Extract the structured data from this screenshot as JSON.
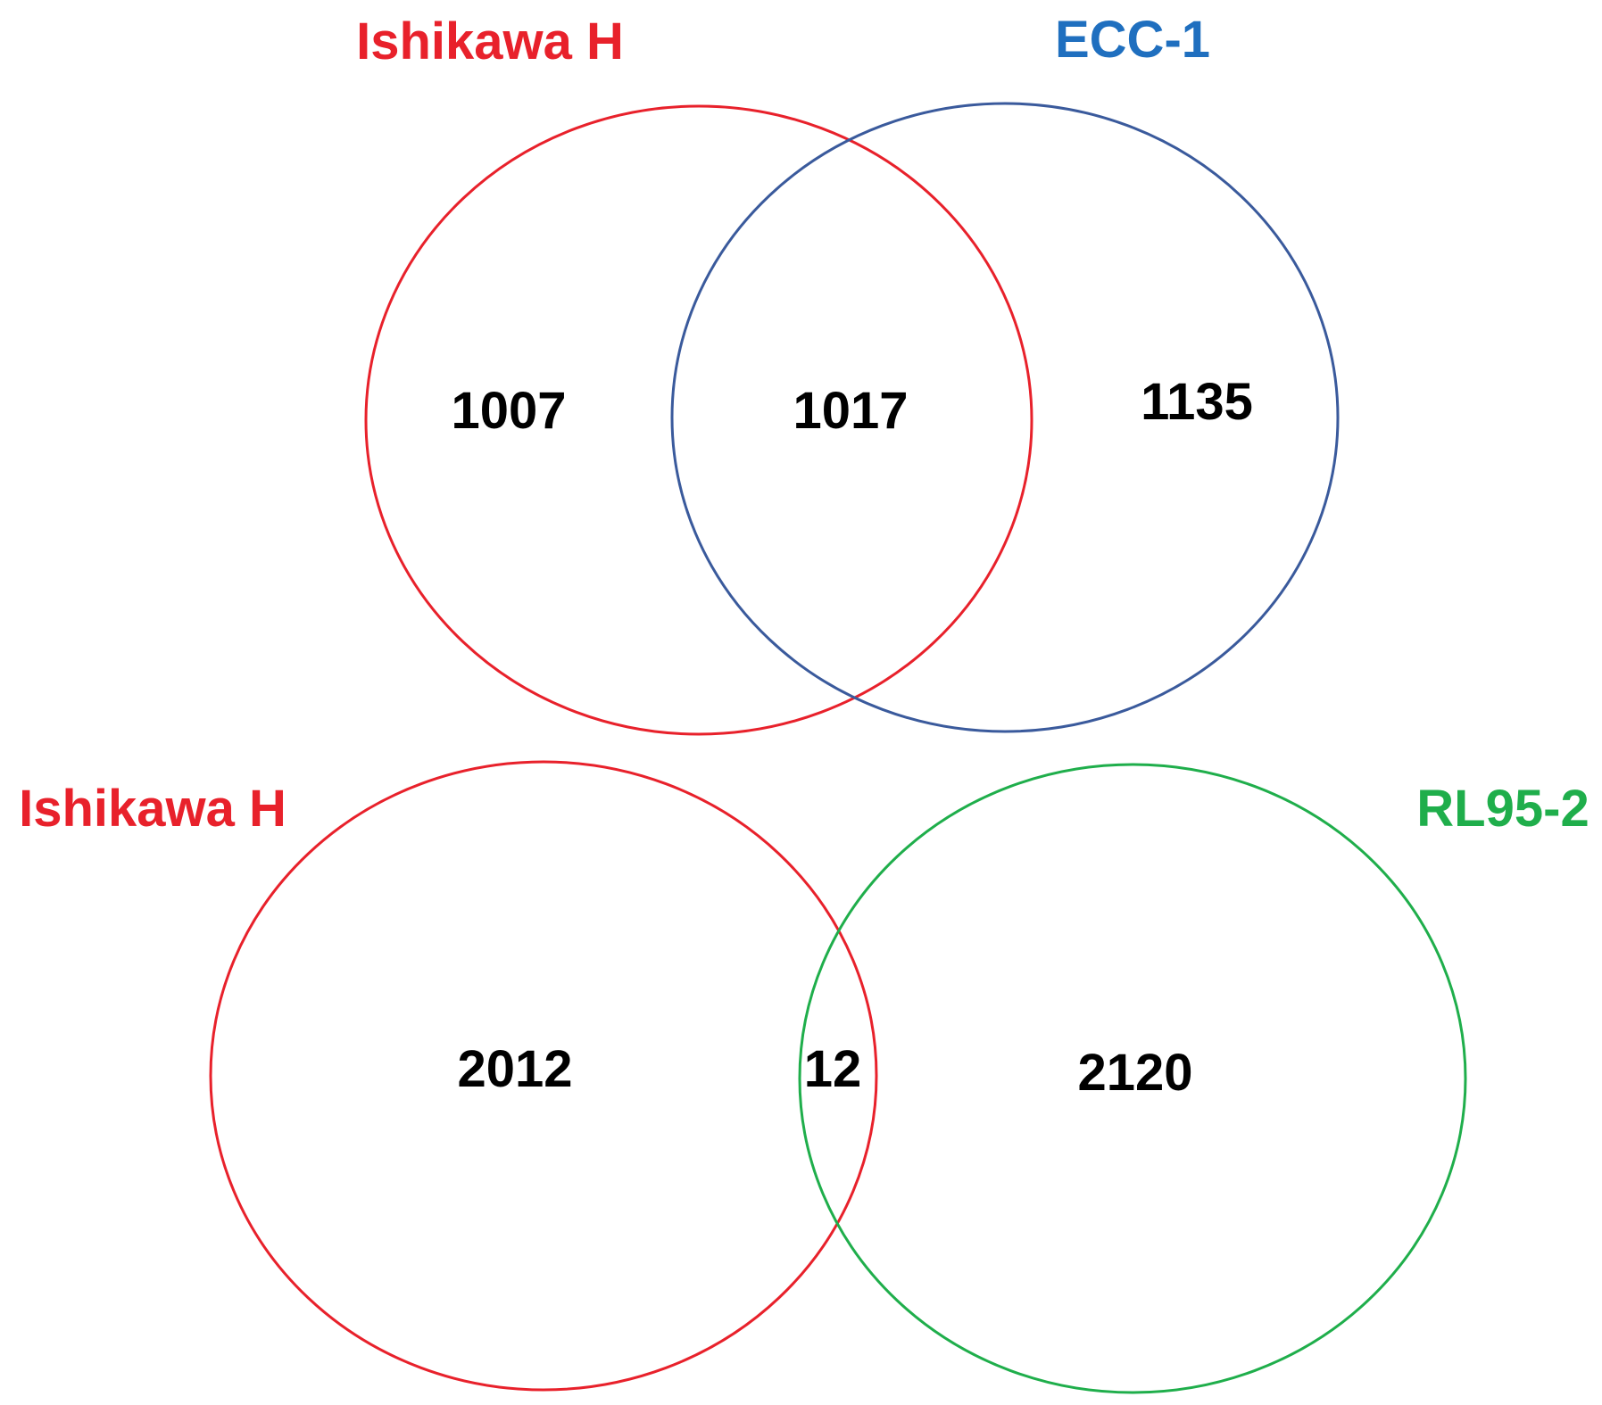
{
  "diagrams": [
    {
      "sets": [
        {
          "label": "Ishikawa H",
          "color": "#e8212b"
        },
        {
          "label": "ECC-1",
          "color": "#1f6fbf"
        }
      ],
      "ring_colors": [
        "#e8212b",
        "#3a5a9c"
      ],
      "counts": {
        "left_only": "1007",
        "overlap": "1017",
        "right_only": "1135"
      }
    },
    {
      "sets": [
        {
          "label": "Ishikawa H",
          "color": "#e8212b"
        },
        {
          "label": "RL95-2",
          "color": "#1fae4b"
        }
      ],
      "ring_colors": [
        "#e8212b",
        "#1fae4b"
      ],
      "counts": {
        "left_only": "2012",
        "overlap": "12",
        "right_only": "2120"
      }
    }
  ]
}
